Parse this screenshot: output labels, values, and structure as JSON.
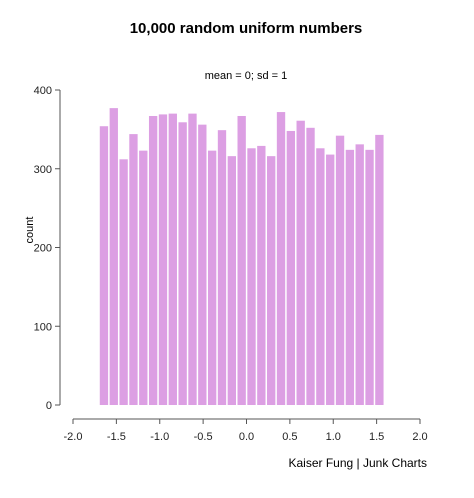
{
  "chart_data": {
    "type": "bar",
    "title": "10,000 random uniform numbers",
    "subtitle": "mean = 0; sd = 1",
    "xlabel": "",
    "ylabel": "count",
    "credit": "Kaiser Fung | Junk Charts",
    "xlim": [
      -2.0,
      2.0
    ],
    "ylim": [
      0,
      400
    ],
    "x_ticks": [
      "-2.0",
      "-1.5",
      "-1.0",
      "-0.5",
      "0.0",
      "0.5",
      "1.0",
      "1.5",
      "2.0"
    ],
    "y_ticks": [
      "0",
      "100",
      "200",
      "300",
      "400"
    ],
    "bin_start": -1.7,
    "bin_width": 0.1134,
    "values": [
      354,
      377,
      312,
      344,
      323,
      367,
      369,
      370,
      359,
      370,
      356,
      323,
      349,
      316,
      367,
      326,
      329,
      316,
      372,
      348,
      361,
      352,
      326,
      318,
      342,
      324,
      331,
      324,
      343
    ],
    "bar_color": "#dc9fe3",
    "grid": false,
    "legend": "none"
  }
}
